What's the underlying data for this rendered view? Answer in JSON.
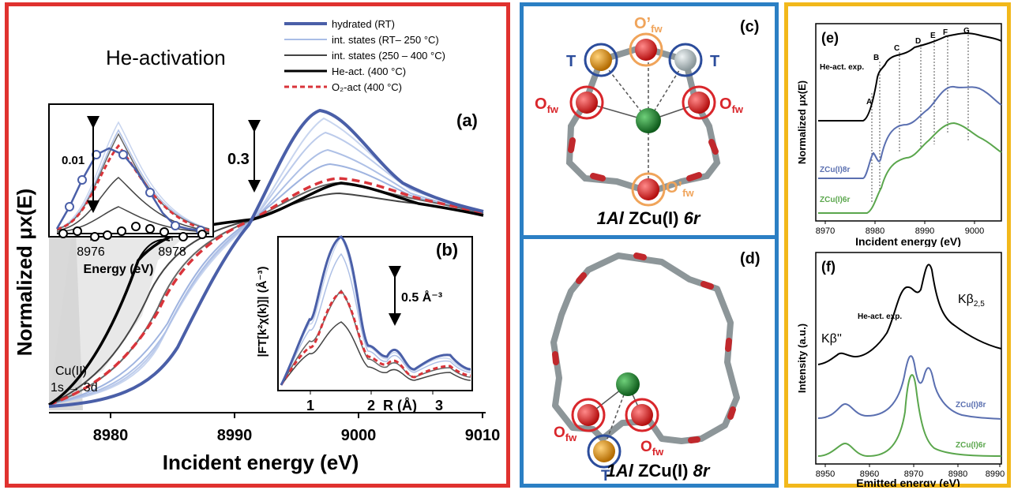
{
  "panels": {
    "a": {
      "letter": "(a)",
      "title": "He-activation",
      "xlabel": "Incident energy (eV)",
      "ylabel": "Normalized μx(E)",
      "xticks": [
        "8980",
        "8990",
        "9000",
        "9010"
      ],
      "scale_label": "0.3",
      "preedge_label_1": "Cu(II)",
      "preedge_label_2": "1s → 3d",
      "legend": [
        {
          "label": "hydrated (RT)",
          "color": "#4a5fa8"
        },
        {
          "label": "int. states (RT– 250 °C)",
          "color": "#a9bde6"
        },
        {
          "label": "int. states (250 – 400 °C)",
          "color": "#444444"
        },
        {
          "label": "He-act. (400 °C)",
          "color": "#000000"
        },
        {
          "label": "O₂-act (400 °C)",
          "color": "#d9343a"
        }
      ],
      "inset": {
        "xlabel": "Energy (eV)",
        "xticks": [
          "8976",
          "8978"
        ],
        "scale_label": "0.01"
      }
    },
    "b": {
      "letter": "(b)",
      "ylabel": "|FT[k²χ(k)]| (Å⁻³)",
      "xlabel": "R (Å)",
      "xticks": [
        "1",
        "2",
        "3"
      ],
      "scale_label": "0.5 Å⁻³"
    },
    "c": {
      "letter": "(c)",
      "caption_a": "1Al",
      "caption_b": " ZCu(I) ",
      "caption_c": "6r",
      "label_T": "T",
      "label_Ofw": "O",
      "label_Ofw_sub": "fw",
      "label_Opfw": "O’",
      "label_Opfw_sub": "fw"
    },
    "d": {
      "letter": "(d)",
      "caption_a": "1Al",
      "caption_b": " ZCu(I) ",
      "caption_c": "8r",
      "label_T": "T",
      "label_Ofw": "O",
      "label_Ofw_sub": "fw"
    },
    "e": {
      "letter": "(e)",
      "ylabel": "Normalized μx(E)",
      "xlabel": "Incident energy (eV)",
      "xticks": [
        "8970",
        "8980",
        "8990",
        "9000"
      ],
      "features": [
        "A",
        "B",
        "C",
        "D",
        "E",
        "F",
        "G"
      ],
      "series_labels": [
        "He-act. exp.",
        "ZCu(I)8r",
        "ZCu(I)6r"
      ]
    },
    "f": {
      "letter": "(f)",
      "ylabel": "Intensity (a.u.)",
      "xlabel": "Emitted energy (eV)",
      "xticks": [
        "8950",
        "8960",
        "8970",
        "8980",
        "8990"
      ],
      "peak_kb25": "Kβ",
      "peak_kb25_sub": "2,5",
      "peak_kb2": "Kβ''",
      "series_labels": [
        "He-act. exp.",
        "ZCu(I)8r",
        "ZCu(I)6r"
      ]
    }
  },
  "colors": {
    "frame_red": "#e0322f",
    "frame_blue": "#2b7fc4",
    "frame_yellow": "#f2b81b",
    "hydrated": "#4a5fa8",
    "int_light": "#a9bde6",
    "int_dark": "#444444",
    "he_act": "#000000",
    "o2_act": "#d9343a",
    "calc_8r": "#5a6fb0",
    "calc_6r": "#5aa64c",
    "cu_atom": "#1f8a2e",
    "o_atom": "#d81d1d",
    "t_gold": "#e39b1a",
    "t_grey": "#b9c3c6"
  }
}
